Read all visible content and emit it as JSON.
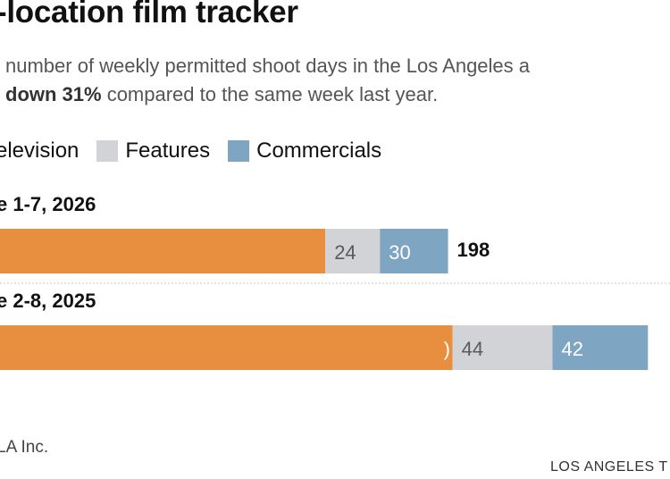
{
  "title": "-location film tracker",
  "subtitle_line1": "number of weekly permitted shoot days in the Los Angeles a",
  "subtitle_bold": "down 31%",
  "subtitle_rest": " compared to the same week last year.",
  "legend": [
    {
      "label": "elevision",
      "color": "#e78f3f"
    },
    {
      "label": "Features",
      "color": "#d2d3d6"
    },
    {
      "label": "Commercials",
      "color": "#7ea5c2"
    }
  ],
  "source": "LA Inc.",
  "credit": "LOS ANGELES T",
  "chart_data": {
    "type": "bar",
    "orientation": "horizontal",
    "stacked": true,
    "categories": [
      "e 1-7, 2026",
      "e 2-8, 2025"
    ],
    "series": [
      {
        "name": "elevision",
        "values": [
          144,
          200
        ],
        "labels": [
          "",
          ")"
        ],
        "color": "#e78f3f"
      },
      {
        "name": "Features",
        "values": [
          24,
          44
        ],
        "labels": [
          "24",
          "44"
        ],
        "color": "#d2d3d6"
      },
      {
        "name": "Commercials",
        "values": [
          30,
          42
        ],
        "labels": [
          "30",
          "42"
        ],
        "color": "#7ea5c2"
      }
    ],
    "totals": [
      "198",
      ""
    ],
    "legend_position": "top-left",
    "grid": false
  }
}
